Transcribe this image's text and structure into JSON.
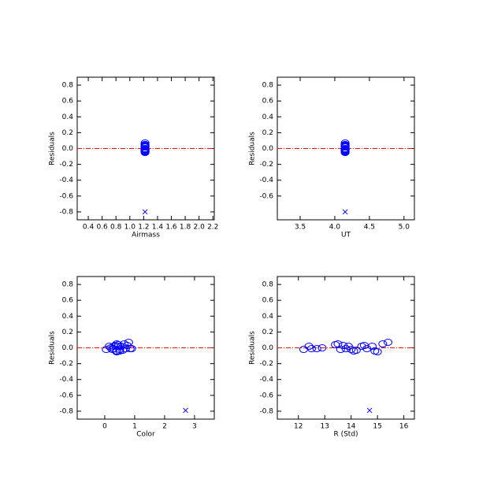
{
  "chart_data": [
    {
      "type": "scatter",
      "xlabel": "Airmass",
      "ylabel": "Residuals",
      "xlim": [
        0.24,
        2.22
      ],
      "ylim": [
        -0.9,
        0.9
      ],
      "xticks": [
        0.4,
        0.6,
        0.8,
        {
          "value": 1,
          "label": "1.0"
        },
        1.2,
        1.4,
        1.6,
        1.8,
        {
          "value": 2,
          "label": "2.0"
        },
        2.2
      ],
      "yticks": [
        0.8,
        0.6,
        0.4,
        0.2,
        {
          "value": 0,
          "label": "0.0"
        },
        -0.2,
        -0.4,
        -0.6,
        -0.8
      ],
      "hlines": [
        {
          "value": 0,
          "color": "#ff0000"
        }
      ],
      "series": [
        {
          "marker": "circle",
          "color": "#0000ff",
          "x": [
            1.22,
            1.22,
            1.22,
            1.22,
            1.22,
            1.22,
            1.22,
            1.22,
            1.22,
            1.22,
            1.22,
            1.22,
            1.22,
            1.22,
            1.22,
            1.22,
            1.22,
            1.22,
            1.22,
            1.22,
            1.22,
            1.22
          ],
          "values": [
            -0.02,
            0.02,
            -0.01,
            -0.01,
            0.0,
            0.04,
            0.05,
            -0.02,
            0.03,
            -0.01,
            0.02,
            -0.02,
            -0.04,
            -0.03,
            0.02,
            0.03,
            -0.01,
            0.02,
            -0.04,
            -0.05,
            0.05,
            0.07
          ]
        },
        {
          "marker": "x",
          "color": "#0000ff",
          "x": [
            1.22
          ],
          "values": [
            -0.8
          ]
        }
      ]
    },
    {
      "type": "scatter",
      "xlabel": "UT",
      "ylabel": "Residuals",
      "xlim": [
        3.17,
        5.15
      ],
      "ylim": [
        -0.9,
        0.9
      ],
      "xticks": [
        3.5,
        {
          "value": 4,
          "label": "4.0"
        },
        4.5,
        {
          "value": 5,
          "label": "5.0"
        }
      ],
      "yticks": [
        0.8,
        0.6,
        0.4,
        0.2,
        {
          "value": 0,
          "label": "0.0"
        },
        -0.2,
        -0.4,
        -0.6
      ],
      "hlines": [
        {
          "value": 0,
          "color": "#ff0000"
        }
      ],
      "series": [
        {
          "marker": "circle",
          "color": "#0000ff",
          "x": [
            4.15,
            4.15,
            4.15,
            4.15,
            4.15,
            4.15,
            4.15,
            4.15,
            4.15,
            4.15,
            4.15,
            4.15,
            4.15,
            4.15,
            4.15,
            4.15,
            4.15,
            4.15,
            4.15,
            4.15,
            4.15,
            4.15
          ],
          "values": [
            -0.02,
            0.02,
            -0.01,
            -0.01,
            0.0,
            0.04,
            0.05,
            -0.02,
            0.03,
            -0.01,
            0.02,
            -0.02,
            -0.04,
            -0.03,
            0.02,
            0.03,
            -0.01,
            0.02,
            -0.04,
            -0.05,
            0.05,
            0.07
          ]
        },
        {
          "marker": "x",
          "color": "#0000ff",
          "x": [
            4.15
          ],
          "values": [
            -0.8
          ]
        }
      ]
    },
    {
      "type": "scatter",
      "xlabel": "Color",
      "ylabel": "Residuals",
      "xlim": [
        -0.92,
        3.66
      ],
      "ylim": [
        -0.9,
        0.9
      ],
      "xticks": [
        0,
        1,
        2,
        3
      ],
      "yticks": [
        0.8,
        0.6,
        0.4,
        0.2,
        {
          "value": 0,
          "label": "0.0"
        },
        -0.2,
        -0.4,
        -0.6,
        -0.8
      ],
      "hlines": [
        {
          "value": 0,
          "color": "#ff0000"
        }
      ],
      "series": [
        {
          "marker": "circle",
          "color": "#0000ff",
          "x": [
            0.05,
            0.15,
            0.9,
            0.3,
            0.2,
            0.45,
            0.4,
            0.5,
            0.35,
            0.7,
            0.55,
            0.25,
            0.4,
            0.6,
            0.45,
            0.75,
            0.85,
            0.3,
            0.5,
            0.4,
            0.65,
            0.8
          ],
          "values": [
            -0.02,
            0.02,
            -0.01,
            -0.01,
            0.0,
            0.04,
            0.05,
            -0.02,
            0.03,
            -0.01,
            0.02,
            -0.02,
            -0.04,
            -0.03,
            0.02,
            0.03,
            -0.01,
            0.02,
            -0.04,
            -0.05,
            0.05,
            0.07
          ]
        },
        {
          "marker": "x",
          "color": "#0000ff",
          "x": [
            2.7
          ],
          "values": [
            -0.79
          ]
        }
      ]
    },
    {
      "type": "scatter",
      "xlabel": "R (Std)",
      "ylabel": "Residuals",
      "xlim": [
        11.2,
        16.4
      ],
      "ylim": [
        -0.9,
        0.9
      ],
      "xticks": [
        12,
        13,
        14,
        15,
        16
      ],
      "yticks": [
        0.8,
        0.6,
        0.4,
        0.2,
        {
          "value": 0,
          "label": "0.0"
        },
        -0.2,
        -0.4,
        -0.6,
        -0.8
      ],
      "hlines": [
        {
          "value": 0,
          "color": "#ff0000"
        }
      ],
      "series": [
        {
          "marker": "circle",
          "color": "#0000ff",
          "x": [
            12.2,
            12.4,
            12.5,
            12.7,
            12.9,
            13.4,
            13.5,
            13.6,
            13.7,
            13.8,
            13.9,
            14.0,
            14.1,
            14.2,
            14.4,
            14.5,
            14.6,
            14.8,
            14.9,
            15.0,
            15.2,
            15.4
          ],
          "values": [
            -0.02,
            0.02,
            -0.01,
            -0.01,
            0.0,
            0.04,
            0.05,
            -0.02,
            0.03,
            -0.01,
            0.02,
            -0.02,
            -0.04,
            -0.03,
            0.02,
            0.03,
            -0.01,
            0.02,
            -0.04,
            -0.05,
            0.05,
            0.07
          ]
        },
        {
          "marker": "x",
          "color": "#0000ff",
          "x": [
            14.7
          ],
          "values": [
            -0.79
          ]
        }
      ]
    }
  ]
}
